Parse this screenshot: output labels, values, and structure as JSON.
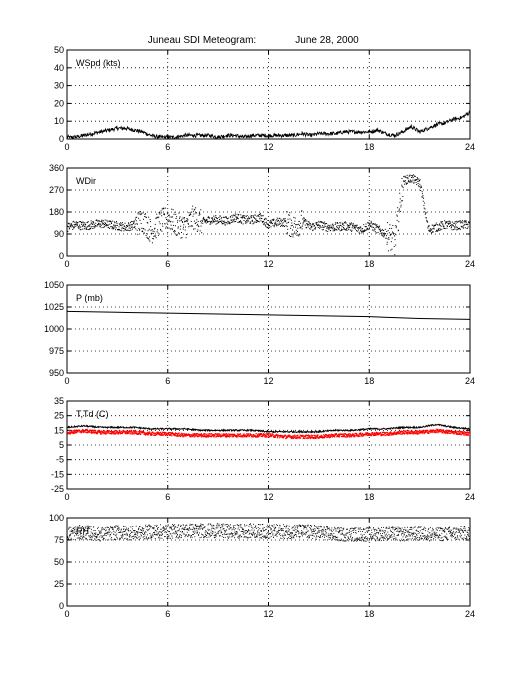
{
  "title": {
    "station": "Juneau SDI Meteogram:",
    "date": "June 28, 2000"
  },
  "colors": {
    "trace": "#000000",
    "dewpoint": "#ff0000",
    "grid": "#000000"
  },
  "chart_data": [
    {
      "type": "line",
      "label": "WSpd (kts)",
      "xlim": [
        0,
        24
      ],
      "xticks": [
        0,
        6,
        12,
        18,
        24
      ],
      "ylim": [
        0,
        50
      ],
      "yticks": [
        0,
        10,
        20,
        30,
        40,
        50
      ],
      "grid": true,
      "series": [
        {
          "x": [
            0,
            0.5,
            1,
            1.5,
            2,
            2.5,
            3,
            3.5,
            4,
            4.5,
            5,
            5.5,
            6,
            6.5,
            7,
            7.5,
            8,
            8.5,
            9,
            9.5,
            10,
            10.5,
            11,
            11.5,
            12,
            12.5,
            13,
            13.5,
            14,
            14.5,
            15,
            15.5,
            16,
            16.5,
            17,
            17.5,
            18,
            18.5,
            19,
            19.5,
            20,
            20.5,
            21,
            21.5,
            22,
            22.5,
            23,
            23.5,
            24
          ],
          "values": [
            1,
            1,
            2,
            3,
            4,
            5,
            6,
            6,
            5,
            4,
            2,
            1,
            1,
            1,
            2,
            2,
            2,
            2,
            1,
            2,
            2,
            1,
            2,
            2,
            2,
            2,
            2,
            2,
            3,
            2,
            3,
            3,
            3,
            4,
            4,
            4,
            4,
            5,
            3,
            2,
            4,
            7,
            4,
            6,
            8,
            9,
            11,
            12,
            15
          ]
        }
      ]
    },
    {
      "type": "scatter",
      "label": "WDir",
      "xlim": [
        0,
        24
      ],
      "xticks": [
        0,
        6,
        12,
        18,
        24
      ],
      "ylim": [
        0,
        360
      ],
      "yticks": [
        0,
        90,
        180,
        270,
        360
      ],
      "grid": true,
      "series": [
        {
          "x": [
            0,
            0.5,
            1,
            1.5,
            2,
            2.5,
            3,
            3.5,
            4,
            4.5,
            5,
            5.5,
            6,
            6.5,
            7,
            7.5,
            8,
            8.5,
            9,
            9.5,
            10,
            10.5,
            11,
            11.5,
            12,
            12.5,
            13,
            13.5,
            14,
            14.5,
            15,
            15.5,
            16,
            16.5,
            17,
            17.5,
            18,
            18.5,
            19,
            19.5,
            20,
            20.5,
            21,
            21.5,
            22,
            22.5,
            23,
            23.5,
            24
          ],
          "values": [
            120,
            130,
            125,
            130,
            135,
            130,
            125,
            120,
            130,
            150,
            100,
            140,
            160,
            130,
            120,
            160,
            140,
            150,
            150,
            145,
            160,
            150,
            150,
            160,
            130,
            140,
            140,
            120,
            145,
            120,
            130,
            120,
            120,
            125,
            120,
            110,
            130,
            110,
            90,
            60,
            310,
            320,
            300,
            110,
            120,
            130,
            125,
            130,
            130
          ]
        }
      ]
    },
    {
      "type": "line",
      "label": "P (mb)",
      "xlim": [
        0,
        24
      ],
      "xticks": [
        0,
        6,
        12,
        18,
        24
      ],
      "ylim": [
        950,
        1050
      ],
      "yticks": [
        950,
        975,
        1000,
        1025,
        1050
      ],
      "grid": true,
      "series": [
        {
          "x": [
            0,
            3,
            6,
            9,
            12,
            15,
            18,
            21,
            24
          ],
          "values": [
            1020,
            1019,
            1018,
            1017,
            1016,
            1015,
            1014,
            1012,
            1011
          ]
        }
      ]
    },
    {
      "type": "line",
      "label": "T,Td (C)",
      "xlim": [
        0,
        24
      ],
      "xticks": [
        0,
        6,
        12,
        18,
        24
      ],
      "ylim": [
        -25,
        35
      ],
      "yticks": [
        -25,
        -15,
        -5,
        5,
        15,
        25,
        35
      ],
      "grid": true,
      "series": [
        {
          "role": "temperature",
          "x": [
            0,
            1,
            2,
            3,
            4,
            5,
            6,
            7,
            8,
            9,
            10,
            11,
            12,
            13,
            14,
            15,
            16,
            17,
            18,
            19,
            20,
            21,
            22,
            23,
            24
          ],
          "values": [
            17,
            18,
            17,
            17,
            17,
            16,
            16,
            16,
            15,
            15,
            15,
            15,
            14,
            14,
            14,
            14,
            15,
            15,
            16,
            16,
            17,
            17,
            19,
            17,
            16
          ]
        },
        {
          "role": "dewpoint",
          "x": [
            0,
            1,
            2,
            3,
            4,
            5,
            6,
            7,
            8,
            9,
            10,
            11,
            12,
            13,
            14,
            15,
            16,
            17,
            18,
            19,
            20,
            21,
            22,
            23,
            24
          ],
          "values": [
            14,
            15,
            14,
            14,
            14,
            13,
            13,
            12,
            12,
            12,
            12,
            12,
            12,
            11,
            11,
            11,
            12,
            12,
            13,
            13,
            14,
            14,
            15,
            14,
            13
          ]
        }
      ]
    },
    {
      "type": "scatter",
      "label": "RH",
      "xlim": [
        0,
        24
      ],
      "xticks": [
        0,
        6,
        12,
        18,
        24
      ],
      "ylim": [
        0,
        100
      ],
      "yticks": [
        0,
        25,
        50,
        75,
        100
      ],
      "grid": true,
      "series": [
        {
          "x": [
            0,
            1,
            2,
            3,
            4,
            5,
            6,
            7,
            8,
            9,
            10,
            11,
            12,
            13,
            14,
            15,
            16,
            17,
            18,
            19,
            20,
            21,
            22,
            23,
            24
          ],
          "values": [
            83,
            84,
            82,
            84,
            83,
            85,
            85,
            86,
            86,
            86,
            85,
            86,
            85,
            85,
            85,
            84,
            82,
            82,
            82,
            83,
            82,
            83,
            82,
            83,
            83
          ]
        }
      ]
    }
  ]
}
